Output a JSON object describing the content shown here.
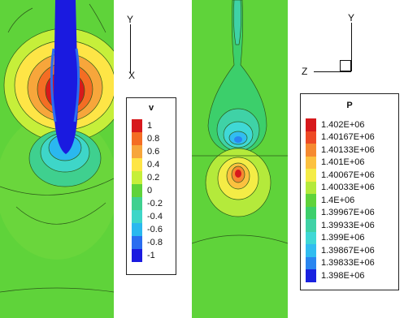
{
  "left_panel": {
    "axis": {
      "y": "Y",
      "x": "X"
    },
    "legend": {
      "title": "v",
      "entries": [
        {
          "label": "1",
          "color": "#d7191c"
        },
        {
          "label": "0.8",
          "color": "#f46d24"
        },
        {
          "label": "0.6",
          "color": "#f7a63b"
        },
        {
          "label": "0.4",
          "color": "#fee546"
        },
        {
          "label": "0.2",
          "color": "#c6ef3a"
        },
        {
          "label": "0",
          "color": "#5fd33a"
        },
        {
          "label": "-0.2",
          "color": "#3fd08f"
        },
        {
          "label": "-0.4",
          "color": "#3ed6c8"
        },
        {
          "label": "-0.6",
          "color": "#2ab8ef"
        },
        {
          "label": "-0.8",
          "color": "#2a6df0"
        },
        {
          "label": "-1",
          "color": "#1a1ae0"
        }
      ]
    }
  },
  "right_panel": {
    "axis": {
      "y": "Y",
      "z": "Z"
    },
    "legend": {
      "title": "P",
      "entries": [
        {
          "label": "1.402E+06",
          "color": "#d7191c"
        },
        {
          "label": "1.40167E+06",
          "color": "#ee4a25"
        },
        {
          "label": "1.40133E+06",
          "color": "#f68a30"
        },
        {
          "label": "1.401E+06",
          "color": "#fcc13f"
        },
        {
          "label": "1.40067E+06",
          "color": "#f4ec46"
        },
        {
          "label": "1.40033E+06",
          "color": "#b4ea3b"
        },
        {
          "label": "1.4E+06",
          "color": "#5fd33a"
        },
        {
          "label": "1.39967E+06",
          "color": "#3ccf6b"
        },
        {
          "label": "1.39933E+06",
          "color": "#3fd2a6"
        },
        {
          "label": "1.399E+06",
          "color": "#3fd8d6"
        },
        {
          "label": "1.39867E+06",
          "color": "#31bdf0"
        },
        {
          "label": "1.39833E+06",
          "color": "#2a86f0"
        },
        {
          "label": "1.398E+06",
          "color": "#1a22e0"
        }
      ]
    }
  }
}
